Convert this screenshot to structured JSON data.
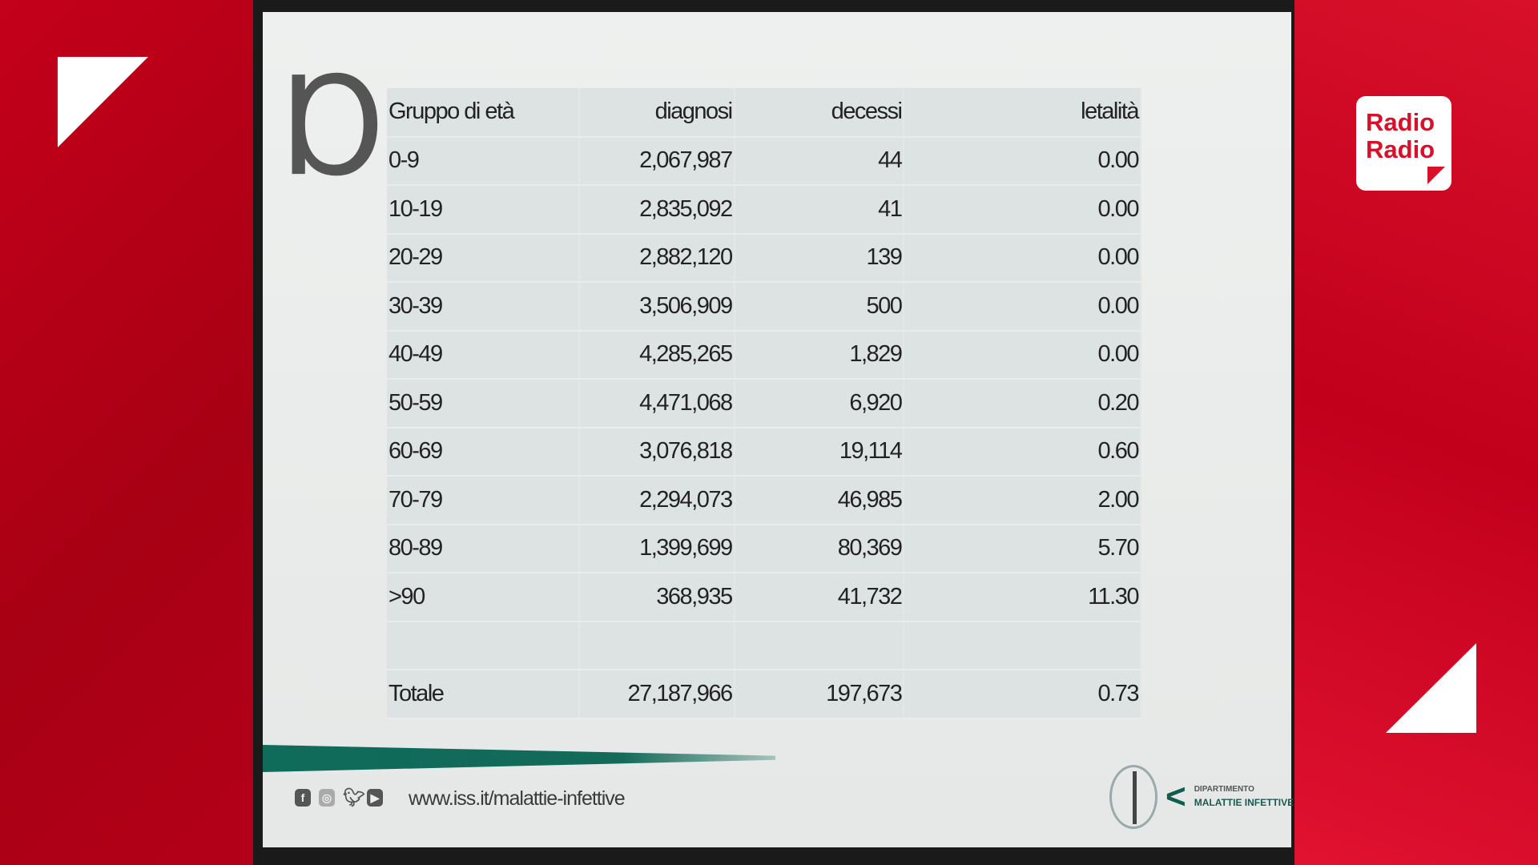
{
  "broadcaster": {
    "logo_text": [
      "Radio",
      "Radio"
    ],
    "brand_color": "#d8102a"
  },
  "table": {
    "headers": [
      "Gruppo di età",
      "diagnosi",
      "decessi",
      "letalità"
    ],
    "rows": [
      [
        "0-9",
        "2,067,987",
        "44",
        "0.00"
      ],
      [
        "10-19",
        "2,835,092",
        "41",
        "0.00"
      ],
      [
        "20-29",
        "2,882,120",
        "139",
        "0.00"
      ],
      [
        "30-39",
        "3,506,909",
        "500",
        "0.00"
      ],
      [
        "40-49",
        "4,285,265",
        "1,829",
        "0.00"
      ],
      [
        "50-59",
        "4,471,068",
        "6,920",
        "0.20"
      ],
      [
        "60-69",
        "3,076,818",
        "19,114",
        "0.60"
      ],
      [
        "70-79",
        "2,294,073",
        "46,985",
        "2.00"
      ],
      [
        "80-89",
        "1,399,699",
        "80,369",
        "5.70"
      ],
      [
        ">90",
        "368,935",
        "41,732",
        "11.30"
      ],
      [
        "",
        "",
        "",
        ""
      ],
      [
        "Totale",
        "27,187,966",
        "197,673",
        "0.73"
      ]
    ]
  },
  "footer": {
    "social_icons": [
      "facebook-icon",
      "instagram-icon",
      "twitter-icon",
      "youtube-icon"
    ],
    "url": "www.iss.it/malattie-infettive",
    "dept_line1": "DIPARTIMENTO",
    "dept_line2": "MALATTIE INFETTIVE",
    "accent_color": "#0f6b5a"
  }
}
